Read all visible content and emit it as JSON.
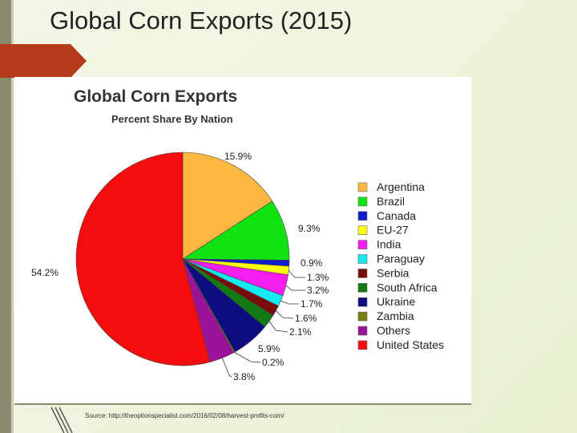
{
  "slide": {
    "title": "Global Corn Exports (2015)",
    "source": "Source:  http://theoptionspecialist.com/2016/02/08/harvest-profits-corn/"
  },
  "chart_data": {
    "type": "pie",
    "title": "Global Corn Exports",
    "subtitle": "Percent Share By Nation",
    "legend_position": "right",
    "slices": [
      {
        "name": "Argentina",
        "value": 15.9,
        "label": "15.9%",
        "color": "#fbb73f"
      },
      {
        "name": "Brazil",
        "value": 9.3,
        "label": "9.3%",
        "color": "#11e211"
      },
      {
        "name": "Canada",
        "value": 0.9,
        "label": "0.9%",
        "color": "#0f1cc9"
      },
      {
        "name": "EU-27",
        "value": 1.3,
        "label": "1.3%",
        "color": "#fbfb17"
      },
      {
        "name": "India",
        "value": 3.2,
        "label": "3.2%",
        "color": "#f51df0"
      },
      {
        "name": "Paraguay",
        "value": 1.7,
        "label": "1.7%",
        "color": "#16e8f0"
      },
      {
        "name": "Serbia",
        "value": 1.6,
        "label": "1.6%",
        "color": "#7a0c0c"
      },
      {
        "name": "South Africa",
        "value": 2.1,
        "label": "2.1%",
        "color": "#137a13"
      },
      {
        "name": "Ukraine",
        "value": 5.9,
        "label": "5.9%",
        "color": "#0d0d80"
      },
      {
        "name": "Zambia",
        "value": 0.2,
        "label": "0.2%",
        "color": "#7d7d16"
      },
      {
        "name": "Others",
        "value": 3.8,
        "label": "3.8%",
        "color": "#9a139a"
      },
      {
        "name": "United States",
        "value": 54.2,
        "label": "54.2%",
        "color": "#f50c0c"
      }
    ]
  }
}
